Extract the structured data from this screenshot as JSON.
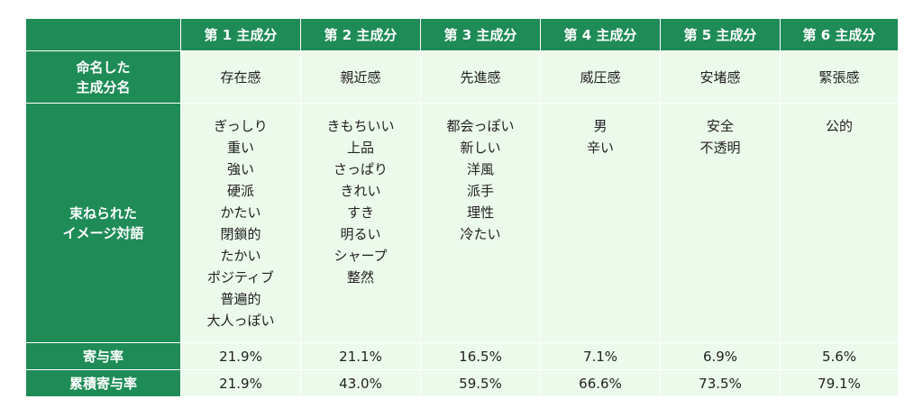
{
  "corner": "",
  "components": [
    {
      "header": "第 1 主成分",
      "name": "存在感",
      "words": [
        "ぎっしり",
        "重い",
        "強い",
        "硬派",
        "かたい",
        "閉鎖的",
        "たかい",
        "ポジティブ",
        "普遍的",
        "大人っぽい"
      ],
      "contribution": "21.9%",
      "cumulative": "21.9%"
    },
    {
      "header": "第 2 主成分",
      "name": "親近感",
      "words": [
        "きもちいい",
        "上品",
        "さっぱり",
        "きれい",
        "すき",
        "明るい",
        "シャープ",
        "整然"
      ],
      "contribution": "21.1%",
      "cumulative": "43.0%"
    },
    {
      "header": "第 3 主成分",
      "name": "先進感",
      "words": [
        "都会っぽい",
        "新しい",
        "洋風",
        "派手",
        "理性",
        "冷たい"
      ],
      "contribution": "16.5%",
      "cumulative": "59.5%"
    },
    {
      "header": "第 4 主成分",
      "name": "威圧感",
      "words": [
        "男",
        "辛い"
      ],
      "contribution": "7.1%",
      "cumulative": "66.6%"
    },
    {
      "header": "第 5 主成分",
      "name": "安堵感",
      "words": [
        "安全",
        "不透明"
      ],
      "contribution": "6.9%",
      "cumulative": "73.5%"
    },
    {
      "header": "第 6 主成分",
      "name": "緊張感",
      "words": [
        "公的"
      ],
      "contribution": "5.6%",
      "cumulative": "79.1%"
    }
  ],
  "row_labels": {
    "name": [
      "命名した",
      "主成分名"
    ],
    "words": [
      "束ねられた",
      "イメージ対語"
    ],
    "contribution": "寄与率",
    "cumulative": "累積寄与率"
  },
  "colors": {
    "header_bg": "#1f8c58",
    "cell_bg": "#ecfaec",
    "header_text": "#ffffff"
  }
}
